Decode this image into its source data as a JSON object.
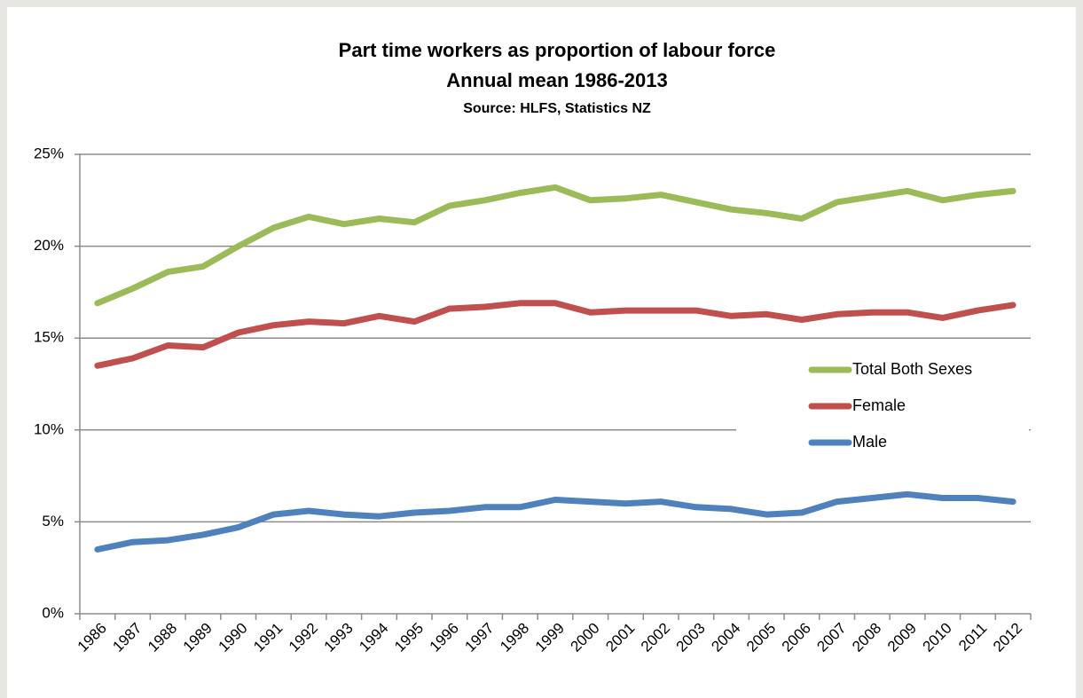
{
  "chart_data": {
    "type": "line",
    "title": "Part time workers as proportion of labour force",
    "subtitle": "Annual mean 1986-2013",
    "source": "Source: HLFS, Statistics NZ",
    "categories": [
      "1986",
      "1987",
      "1988",
      "1989",
      "1990",
      "1991",
      "1992",
      "1993",
      "1994",
      "1995",
      "1996",
      "1997",
      "1998",
      "1999",
      "2000",
      "2001",
      "2002",
      "2003",
      "2004",
      "2005",
      "2006",
      "2007",
      "2008",
      "2009",
      "2010",
      "2011",
      "2012"
    ],
    "series": [
      {
        "name": "Total Both Sexes",
        "color": "#9bbb59",
        "values": [
          16.9,
          17.7,
          18.6,
          18.9,
          20.0,
          21.0,
          21.6,
          21.2,
          21.5,
          21.3,
          22.2,
          22.5,
          22.9,
          23.2,
          22.5,
          22.6,
          22.8,
          22.4,
          22.0,
          21.8,
          21.5,
          22.4,
          22.7,
          23.0,
          22.5,
          22.8,
          23.0
        ]
      },
      {
        "name": "Female",
        "color": "#c0504d",
        "values": [
          13.5,
          13.9,
          14.6,
          14.5,
          15.3,
          15.7,
          15.9,
          15.8,
          16.2,
          15.9,
          16.6,
          16.7,
          16.9,
          16.9,
          16.4,
          16.5,
          16.5,
          16.5,
          16.2,
          16.3,
          16.0,
          16.3,
          16.4,
          16.4,
          16.1,
          16.5,
          16.8
        ]
      },
      {
        "name": "Male",
        "color": "#4f81bd",
        "values": [
          3.5,
          3.9,
          4.0,
          4.3,
          4.7,
          5.4,
          5.6,
          5.4,
          5.3,
          5.5,
          5.6,
          5.8,
          5.8,
          6.2,
          6.1,
          6.0,
          6.1,
          5.8,
          5.7,
          5.4,
          5.5,
          6.1,
          6.3,
          6.5,
          6.3,
          6.3,
          6.1
        ]
      }
    ],
    "ylim": [
      0,
      25
    ],
    "yticks": [
      {
        "value": 0,
        "label": "0%"
      },
      {
        "value": 5,
        "label": "5%"
      },
      {
        "value": 10,
        "label": "10%"
      },
      {
        "value": 15,
        "label": "15%"
      },
      {
        "value": 20,
        "label": "20%"
      },
      {
        "value": 25,
        "label": "25%"
      }
    ],
    "grid": true,
    "legend": "right"
  }
}
